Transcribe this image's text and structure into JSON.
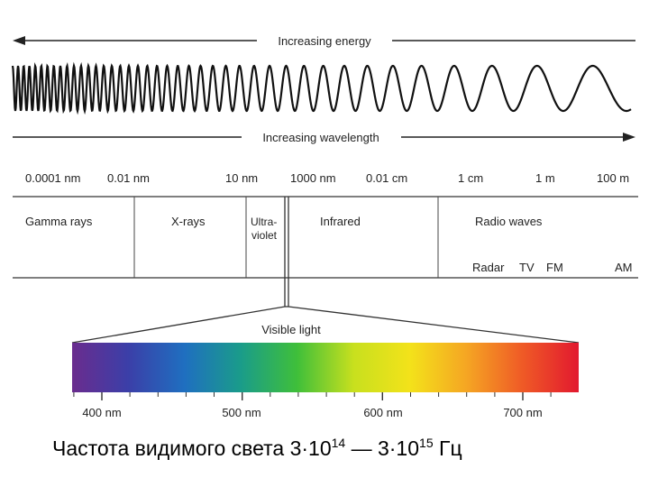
{
  "arrows": {
    "energy_label": "Increasing energy",
    "wavelength_label": "Increasing wavelength"
  },
  "scale": {
    "ticks": [
      "0.0001 nm",
      "0.01 nm",
      "10 nm",
      "1000 nm",
      "0.01 cm",
      "1 cm",
      "1 m",
      "100 m"
    ]
  },
  "bands": {
    "gamma": "Gamma rays",
    "xrays": "X-rays",
    "uv_line1": "Ultra-",
    "uv_line2": "violet",
    "infrared": "Infrared",
    "radio": "Radio waves",
    "radar": "Radar",
    "tv": "TV",
    "fm": "FM",
    "am": "AM"
  },
  "visible": {
    "label": "Visible light",
    "ticks": [
      "400 nm",
      "500 nm",
      "600 nm",
      "700 nm"
    ],
    "colors": [
      "#6a2c8e",
      "#3b3fa8",
      "#1f6fc0",
      "#1a9c8a",
      "#3fbf3a",
      "#c8e01e",
      "#f3e21a",
      "#f5a623",
      "#ef5a26",
      "#e2192f"
    ]
  },
  "caption": {
    "prefix": "Частота видимого света 3·10",
    "exp1": "14",
    "middle": " — 3·10",
    "exp2": "15",
    "suffix": " Гц"
  }
}
